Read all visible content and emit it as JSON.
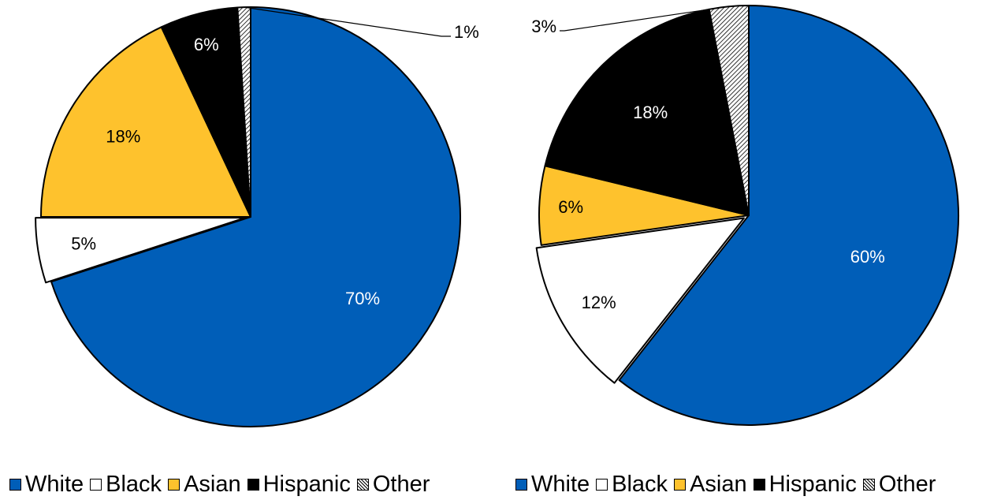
{
  "chart_data": [
    {
      "type": "pie",
      "title": "",
      "slices": [
        {
          "name": "White",
          "value": 70,
          "label": "70%",
          "color": "#005EB8"
        },
        {
          "name": "Black",
          "value": 5,
          "label": "5%",
          "color": "#FFFFFF"
        },
        {
          "name": "Asian",
          "value": 18,
          "label": "18%",
          "color": "#FEC22D"
        },
        {
          "name": "Hispanic",
          "value": 6,
          "label": "6%",
          "color": "#000000"
        },
        {
          "name": "Other",
          "value": 1,
          "label": "1%",
          "pattern": "hatched"
        }
      ],
      "legend_position": "bottom",
      "legend": [
        "White",
        "Black",
        "Asian",
        "Hispanic",
        "Other"
      ]
    },
    {
      "type": "pie",
      "title": "",
      "slices": [
        {
          "name": "White",
          "value": 60,
          "label": "60%",
          "color": "#005EB8"
        },
        {
          "name": "Black",
          "value": 12,
          "label": "12%",
          "color": "#FFFFFF"
        },
        {
          "name": "Asian",
          "value": 6,
          "label": "6%",
          "color": "#FEC22D"
        },
        {
          "name": "Hispanic",
          "value": 18,
          "label": "18%",
          "color": "#000000"
        },
        {
          "name": "Other",
          "value": 3,
          "label": "3%",
          "pattern": "hatched"
        }
      ],
      "legend_position": "bottom",
      "legend": [
        "White",
        "Black",
        "Asian",
        "Hispanic",
        "Other"
      ]
    }
  ]
}
